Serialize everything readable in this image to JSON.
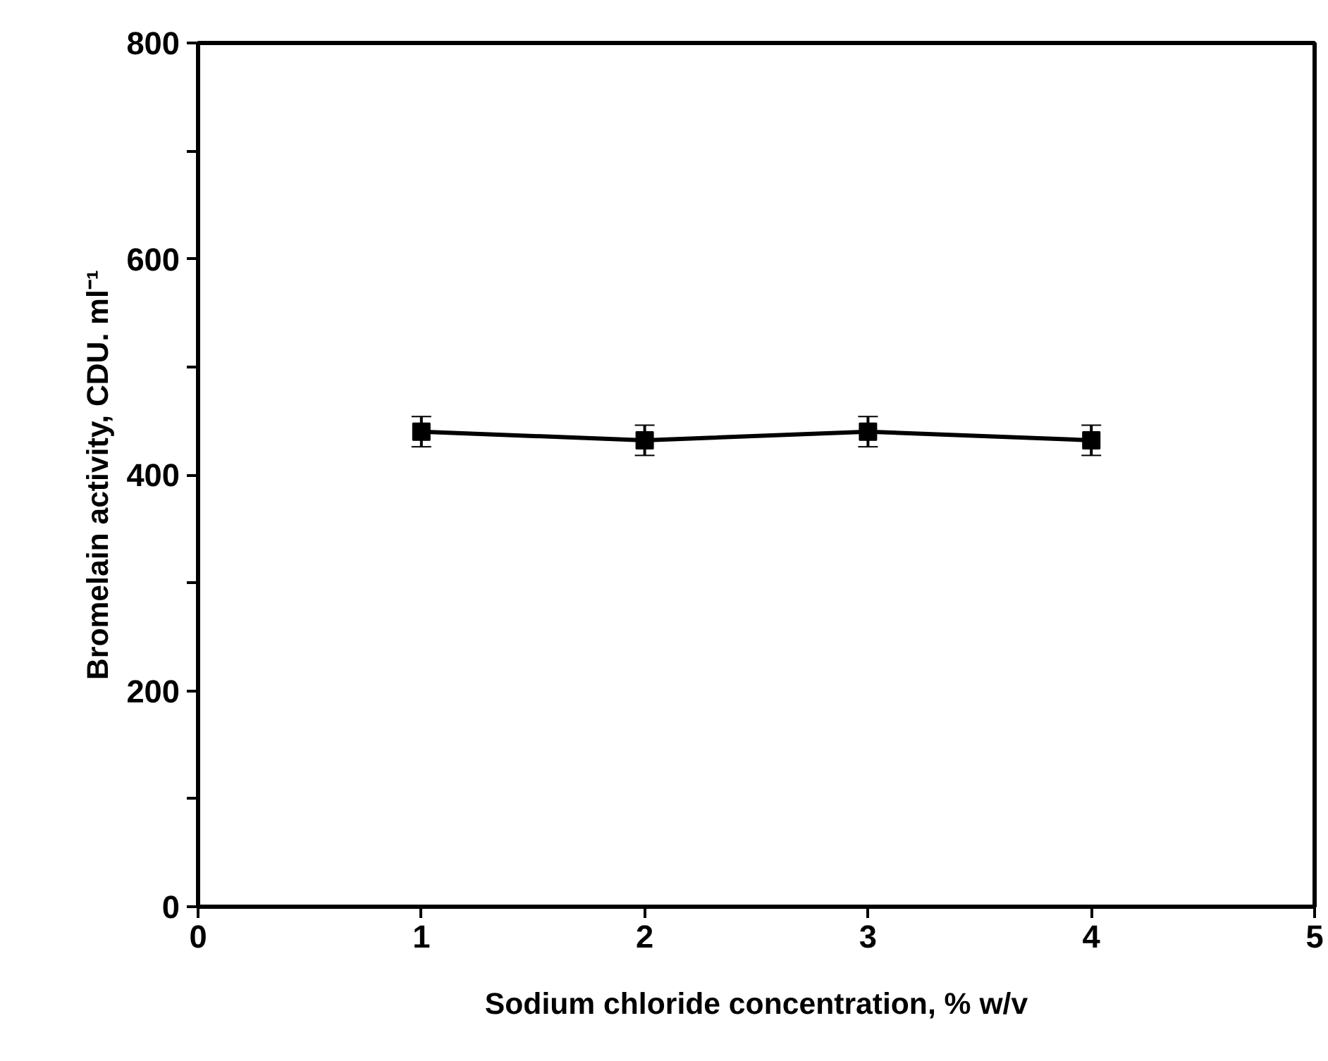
{
  "chart_data": {
    "type": "line",
    "xlabel": "Sodium chloride concentration, % w/v",
    "ylabel": "Bromelain activity, CDU. ml⁻¹",
    "x": [
      1,
      2,
      3,
      4
    ],
    "series": [
      {
        "color": "#000000",
        "values": [
          440,
          432,
          440,
          432
        ],
        "errors": [
          14,
          14,
          14,
          14
        ]
      }
    ],
    "xlim": [
      0,
      5
    ],
    "xticks": [
      0,
      1,
      2,
      3,
      4,
      5
    ],
    "ylim": [
      0,
      800
    ],
    "yticks": [
      0,
      {
        "value": 100,
        "label": null
      },
      200,
      {
        "value": 300,
        "label": null
      },
      400,
      {
        "value": 500,
        "label": null
      },
      600,
      {
        "value": 700,
        "label": null
      },
      800
    ],
    "marker": "square",
    "line_style": "solid"
  }
}
